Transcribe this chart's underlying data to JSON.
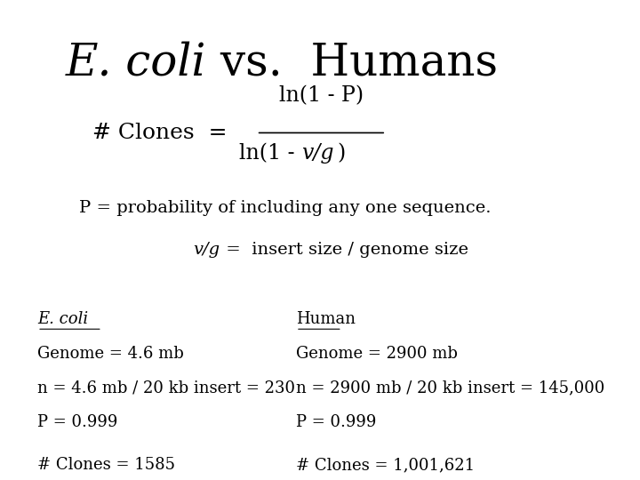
{
  "title_italic": "E. coli",
  "title_normal": " vs.  Humans",
  "formula_num": "ln(1 - P)",
  "formula_den_pre": "ln(1 - ",
  "formula_den_italic": "v/g",
  "formula_den_post": ")",
  "p_line": "P = probability of including any one sequence.",
  "vg_line_italic": "v/g",
  "vg_line_normal": " =  insert size / genome size",
  "ecoli_header": "E. coli",
  "ecoli_line1": "Genome = 4.6 mb",
  "ecoli_line2": "n = 4.6 mb / 20 kb insert = 230",
  "ecoli_line3": "P = 0.999",
  "ecoli_line4": "# Clones = 1585",
  "human_header": "Human",
  "human_line1": "Genome = 2900 mb",
  "human_line2": "n = 2900 mb / 20 kb insert = 145,000",
  "human_line3": "P = 0.999",
  "human_line4": "# Clones = 1,001,621",
  "bg_color": "#ffffff",
  "text_color": "#000000",
  "title_fontsize": 36,
  "formula_fontsize": 18,
  "body_fontsize": 14,
  "detail_fontsize": 13
}
